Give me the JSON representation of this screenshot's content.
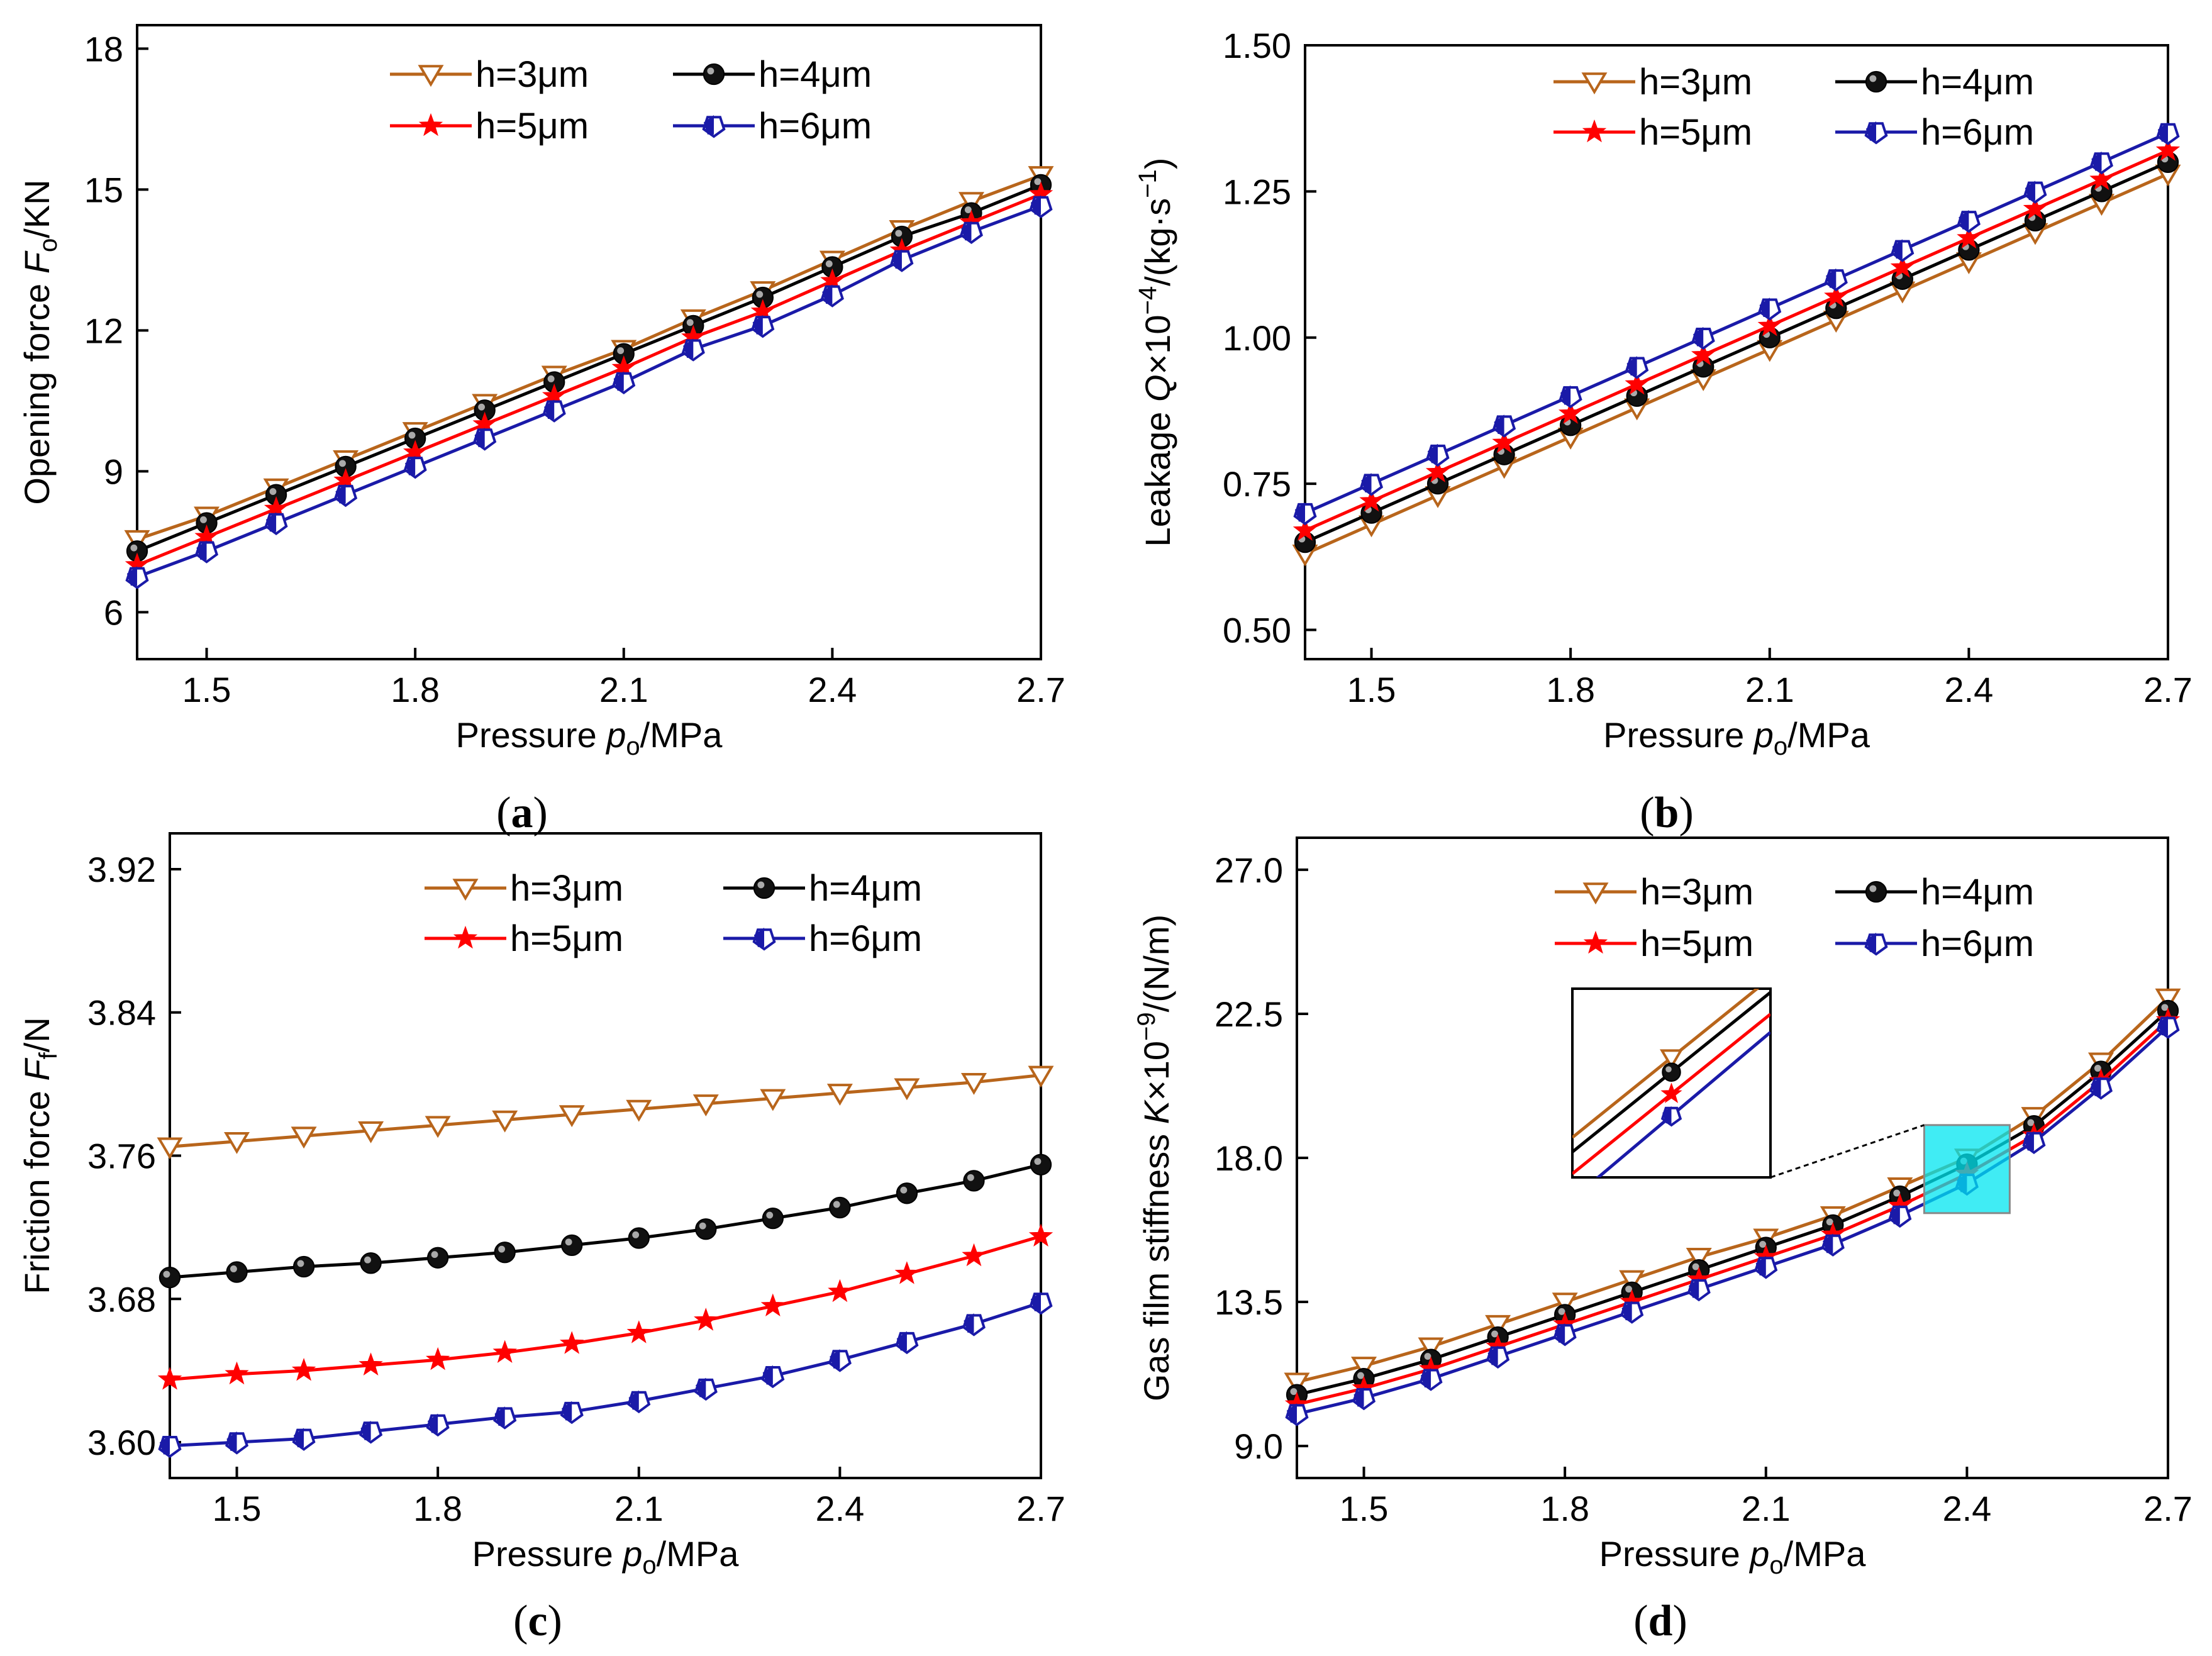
{
  "colors": {
    "h3": "#b8651b",
    "h4": "#000000",
    "h5": "#ff0000",
    "h6": "#1a1aa8",
    "zoom_box": "#00e5f0"
  },
  "chart_data": [
    {
      "id": "a",
      "type": "line",
      "caption": "(a)",
      "xlabel": "Pressure p_o/MPa",
      "xlabel_main": "Pressure ",
      "xlabel_var": "p",
      "xlabel_sub": "o",
      "xlabel_unit": "/MPa",
      "ylabel_main": "Opening force ",
      "ylabel_var": "F",
      "ylabel_sub": "o",
      "ylabel_unit": "/KN",
      "xlim": [
        1.4,
        2.7
      ],
      "ylim": [
        5,
        18.5
      ],
      "xticks": [
        1.5,
        1.8,
        2.1,
        2.4,
        2.7
      ],
      "xtick_labels": [
        "1.5",
        "1.8",
        "2.1",
        "2.4",
        "2.7"
      ],
      "yticks": [
        6,
        9,
        12,
        15,
        18
      ],
      "ytick_labels": [
        "6",
        "9",
        "12",
        "15",
        "18"
      ],
      "x": [
        1.4,
        1.5,
        1.6,
        1.7,
        1.8,
        1.9,
        2.0,
        2.1,
        2.2,
        2.3,
        2.4,
        2.5,
        2.6,
        2.7
      ],
      "series": [
        {
          "name": "h=3μm",
          "marker": "tri-down",
          "values": [
            7.55,
            8.05,
            8.65,
            9.25,
            9.85,
            10.45,
            11.05,
            11.6,
            12.25,
            12.85,
            13.5,
            14.15,
            14.75,
            15.3
          ]
        },
        {
          "name": "h=4μm",
          "marker": "ball",
          "values": [
            7.3,
            7.9,
            8.5,
            9.1,
            9.7,
            10.3,
            10.9,
            11.5,
            12.1,
            12.7,
            13.35,
            14.0,
            14.5,
            15.1
          ]
        },
        {
          "name": "h=5μm",
          "marker": "star",
          "values": [
            7.0,
            7.6,
            8.2,
            8.8,
            9.4,
            10.0,
            10.6,
            11.2,
            11.85,
            12.4,
            13.05,
            13.7,
            14.3,
            14.9
          ]
        },
        {
          "name": "h=6μm",
          "marker": "pentagon",
          "values": [
            6.75,
            7.3,
            7.9,
            8.5,
            9.1,
            9.7,
            10.3,
            10.9,
            11.6,
            12.1,
            12.75,
            13.5,
            14.1,
            14.65
          ]
        }
      ]
    },
    {
      "id": "b",
      "type": "line",
      "caption": "(b)",
      "xlabel": "Pressure p_o/MPa",
      "xlabel_main": "Pressure ",
      "xlabel_var": "p",
      "xlabel_sub": "o",
      "xlabel_unit": "/MPa",
      "ylabel_main": "Leakage ",
      "ylabel_var": "Q",
      "ylabel_mid": "×10",
      "ylabel_sup": "−4",
      "ylabel_unit": "/(kg·s",
      "ylabel_sup2": "−1",
      "ylabel_end": ")",
      "xlim": [
        1.4,
        2.7
      ],
      "ylim": [
        0.45,
        1.5
      ],
      "xticks": [
        1.5,
        1.8,
        2.1,
        2.4,
        2.7
      ],
      "xtick_labels": [
        "1.5",
        "1.8",
        "2.1",
        "2.4",
        "2.7"
      ],
      "yticks": [
        0.5,
        0.75,
        1.0,
        1.25,
        1.5
      ],
      "ytick_labels": [
        "0.50",
        "0.75",
        "1.00",
        "1.25",
        "1.50"
      ],
      "x": [
        1.4,
        1.5,
        1.6,
        1.7,
        1.8,
        1.9,
        2.0,
        2.1,
        2.2,
        2.3,
        2.4,
        2.5,
        2.6,
        2.7
      ],
      "series": [
        {
          "name": "h=3μm",
          "marker": "tri-down",
          "values": [
            0.63,
            0.68,
            0.73,
            0.78,
            0.83,
            0.88,
            0.93,
            0.98,
            1.03,
            1.08,
            1.13,
            1.18,
            1.23,
            1.28
          ]
        },
        {
          "name": "h=4μm",
          "marker": "ball",
          "values": [
            0.65,
            0.7,
            0.75,
            0.8,
            0.85,
            0.9,
            0.95,
            1.0,
            1.05,
            1.1,
            1.15,
            1.2,
            1.25,
            1.3
          ]
        },
        {
          "name": "h=5μm",
          "marker": "star",
          "values": [
            0.67,
            0.72,
            0.77,
            0.82,
            0.87,
            0.92,
            0.97,
            1.02,
            1.07,
            1.12,
            1.17,
            1.22,
            1.27,
            1.32
          ]
        },
        {
          "name": "h=6μm",
          "marker": "pentagon",
          "values": [
            0.7,
            0.75,
            0.8,
            0.85,
            0.9,
            0.95,
            1.0,
            1.05,
            1.1,
            1.15,
            1.2,
            1.25,
            1.3,
            1.35
          ]
        }
      ]
    },
    {
      "id": "c",
      "type": "line",
      "caption": "(c)",
      "xlabel": "Pressure p_o/MPa",
      "xlabel_main": "Pressure ",
      "xlabel_var": "p",
      "xlabel_sub": "o",
      "xlabel_unit": "/MPa",
      "ylabel_main": "Friction force ",
      "ylabel_var": "F",
      "ylabel_sub": "f",
      "ylabel_unit": "/N",
      "xlim": [
        1.4,
        2.7
      ],
      "ylim": [
        3.58,
        3.94
      ],
      "xticks": [
        1.5,
        1.8,
        2.1,
        2.4,
        2.7
      ],
      "xtick_labels": [
        "1.5",
        "1.8",
        "2.1",
        "2.4",
        "2.7"
      ],
      "yticks": [
        3.6,
        3.68,
        3.76,
        3.84,
        3.92
      ],
      "ytick_labels": [
        "3.60",
        "3.68",
        "3.76",
        "3.84",
        "3.92"
      ],
      "x": [
        1.4,
        1.5,
        1.6,
        1.7,
        1.8,
        1.9,
        2.0,
        2.1,
        2.2,
        2.3,
        2.4,
        2.5,
        2.6,
        2.7
      ],
      "series": [
        {
          "name": "h=3μm",
          "marker": "tri-down",
          "values": [
            3.765,
            3.768,
            3.771,
            3.774,
            3.777,
            3.78,
            3.783,
            3.786,
            3.789,
            3.792,
            3.795,
            3.798,
            3.801,
            3.805
          ]
        },
        {
          "name": "h=4μm",
          "marker": "ball",
          "values": [
            3.692,
            3.695,
            3.698,
            3.7,
            3.703,
            3.706,
            3.71,
            3.714,
            3.719,
            3.725,
            3.731,
            3.739,
            3.746,
            3.755
          ]
        },
        {
          "name": "h=5μm",
          "marker": "star",
          "values": [
            3.635,
            3.638,
            3.64,
            3.643,
            3.646,
            3.65,
            3.655,
            3.661,
            3.668,
            3.676,
            3.684,
            3.694,
            3.704,
            3.715
          ]
        },
        {
          "name": "h=6μm",
          "marker": "pentagon",
          "values": [
            3.598,
            3.6,
            3.602,
            3.606,
            3.61,
            3.614,
            3.617,
            3.623,
            3.63,
            3.637,
            3.646,
            3.656,
            3.666,
            3.678
          ]
        }
      ]
    },
    {
      "id": "d",
      "type": "line",
      "caption": "(d)",
      "xlabel": "Pressure p_o/MPa",
      "xlabel_main": "Pressure ",
      "xlabel_var": "p",
      "xlabel_sub": "o",
      "xlabel_unit": "/MPa",
      "ylabel_main": "Gas film stiffness ",
      "ylabel_var": "K",
      "ylabel_mid": "×10",
      "ylabel_sup": "−9",
      "ylabel_unit": "/(N/m)",
      "xlim": [
        1.4,
        2.7
      ],
      "ylim": [
        8.0,
        28.0
      ],
      "xticks": [
        1.5,
        1.8,
        2.1,
        2.4,
        2.7
      ],
      "xtick_labels": [
        "1.5",
        "1.8",
        "2.1",
        "2.4",
        "2.7"
      ],
      "yticks": [
        9.0,
        13.5,
        18.0,
        22.5,
        27.0
      ],
      "ytick_labels": [
        "9.0",
        "13.5",
        "18.0",
        "22.5",
        "27.0"
      ],
      "x": [
        1.4,
        1.5,
        1.6,
        1.7,
        1.8,
        1.9,
        2.0,
        2.1,
        2.2,
        2.3,
        2.4,
        2.5,
        2.6,
        2.7
      ],
      "series": [
        {
          "name": "h=3μm",
          "marker": "tri-down",
          "values": [
            11.0,
            11.5,
            12.1,
            12.8,
            13.5,
            14.2,
            14.9,
            15.5,
            16.2,
            17.1,
            18.0,
            19.3,
            21.0,
            23.0
          ]
        },
        {
          "name": "h=4μm",
          "marker": "ball",
          "values": [
            10.6,
            11.1,
            11.7,
            12.4,
            13.1,
            13.8,
            14.5,
            15.2,
            15.9,
            16.8,
            17.8,
            19.0,
            20.7,
            22.6
          ]
        },
        {
          "name": "h=5μm",
          "marker": "star",
          "values": [
            10.3,
            10.8,
            11.4,
            12.1,
            12.8,
            13.5,
            14.2,
            14.9,
            15.6,
            16.5,
            17.5,
            18.7,
            20.4,
            22.3
          ]
        },
        {
          "name": "h=6μm",
          "marker": "pentagon",
          "values": [
            10.0,
            10.5,
            11.1,
            11.8,
            12.5,
            13.2,
            13.9,
            14.6,
            15.3,
            16.2,
            17.2,
            18.5,
            20.2,
            22.1
          ]
        }
      ],
      "zoom_center": {
        "x": 2.4,
        "y": 17.65
      }
    }
  ]
}
